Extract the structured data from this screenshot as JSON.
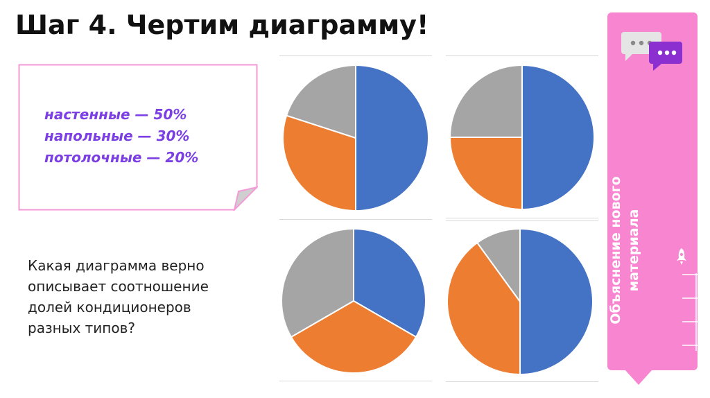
{
  "slide": {
    "title": "Шаг 4. Чертим диаграмму!",
    "note_lines": [
      "настенные — 50%",
      "напольные — 30%",
      "потолочные — 20%"
    ],
    "question_lines": [
      "Какая диаграмма верно",
      "описывает соотношение",
      "долей кондиционеров",
      "разных типов?"
    ],
    "side_label_lines": [
      "Объяснение нового",
      "материала"
    ],
    "icons": [
      "chat-bubbles-icon",
      "rocket-icon"
    ]
  },
  "colors": {
    "blue": "#4472c4",
    "orange": "#ed7d31",
    "gray": "#a5a5a5",
    "note_border": "#f39bd6",
    "note_text": "#7b3fe4",
    "side_panel": "#f885cf"
  },
  "chart_data": [
    {
      "type": "pie",
      "title": "",
      "slices": [
        {
          "value": 50,
          "color": "#4472c4"
        },
        {
          "value": 30,
          "color": "#ed7d31"
        },
        {
          "value": 20,
          "color": "#a5a5a5"
        }
      ]
    },
    {
      "type": "pie",
      "title": "",
      "slices": [
        {
          "value": 50,
          "color": "#4472c4"
        },
        {
          "value": 25,
          "color": "#ed7d31"
        },
        {
          "value": 25,
          "color": "#a5a5a5"
        }
      ]
    },
    {
      "type": "pie",
      "title": "",
      "slices": [
        {
          "value": 33.3,
          "color": "#4472c4"
        },
        {
          "value": 33.3,
          "color": "#ed7d31"
        },
        {
          "value": 33.3,
          "color": "#a5a5a5"
        }
      ]
    },
    {
      "type": "pie",
      "title": "",
      "slices": [
        {
          "value": 50,
          "color": "#4472c4"
        },
        {
          "value": 40,
          "color": "#ed7d31"
        },
        {
          "value": 10,
          "color": "#a5a5a5"
        }
      ]
    }
  ]
}
